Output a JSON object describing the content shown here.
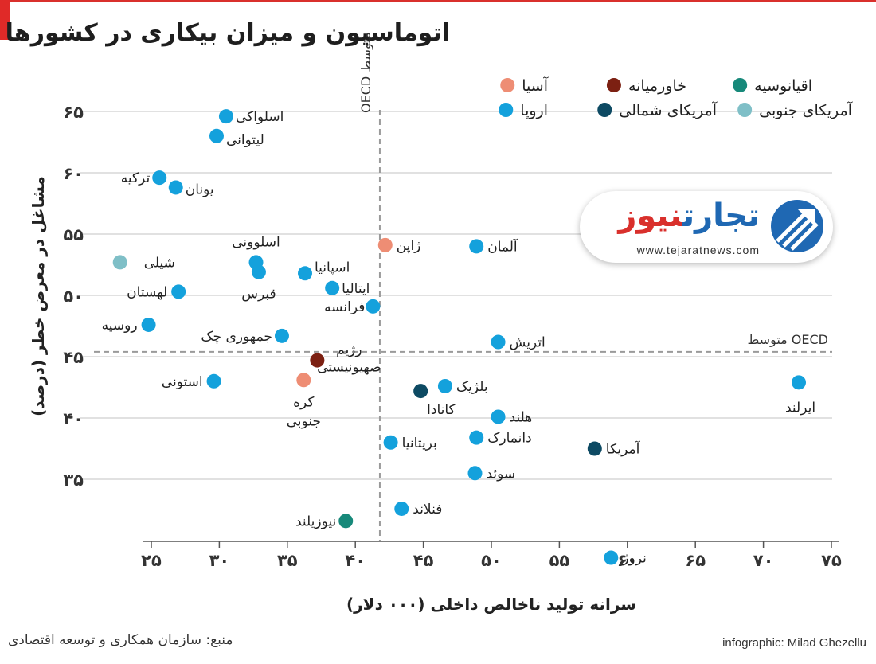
{
  "page_title": "اتوماسیون و میزان بیکاری در کشورها",
  "source": "منبع: سازمان همکاری و توسعه اقتصادی",
  "credit": "infographic: Milad Ghezellu",
  "logo": {
    "name_part1": "تجارت",
    "name_part2": "نیوز",
    "url": "www.tejaratnews.com"
  },
  "colors": {
    "asia": "#ee8d74",
    "middle_east": "#7c2012",
    "oceania": "#17897a",
    "europe": "#14a1dc",
    "north_america": "#0d4a63",
    "south_america": "#7fbfc7"
  },
  "chart_data": {
    "type": "scatter",
    "title": "اتوماسیون و میزان بیکاری در کشورها",
    "xlabel": "سرانه تولید ناخالص داخلی (۰۰۰ دلار)",
    "ylabel": "مشاغل در معرض خطر (درصد)",
    "xlim": [
      24,
      75
    ],
    "ylim": [
      30,
      67
    ],
    "xticks": [
      25,
      30,
      35,
      40,
      45,
      50,
      55,
      60,
      65,
      70,
      75
    ],
    "xtick_labels": [
      "۲۵",
      "۳۰",
      "۳۵",
      "۴۰",
      "۴۵",
      "۵۰",
      "۵۵",
      "۶۰",
      "۶۵",
      "۷۰",
      "۷۵"
    ],
    "yticks": [
      35,
      40,
      45,
      50,
      55,
      60,
      65
    ],
    "ytick_labels": [
      "۳۵",
      "۴۰",
      "۴۵",
      "۵۰",
      "۵۵",
      "۶۰",
      "۶۵"
    ],
    "grid": "horizontal",
    "reference_lines": [
      {
        "axis": "x",
        "value": 41.8,
        "label": "متوسط OECD"
      },
      {
        "axis": "y",
        "value": 45.4,
        "label": "متوسط OECD"
      }
    ],
    "legend": {
      "position": "top-right",
      "items": [
        {
          "key": "asia",
          "label": "آسیا"
        },
        {
          "key": "middle_east",
          "label": "خاورمیانه"
        },
        {
          "key": "oceania",
          "label": "اقیانوسیه"
        },
        {
          "key": "europe",
          "label": "اروپا"
        },
        {
          "key": "north_america",
          "label": "آمریکای شمالی"
        },
        {
          "key": "south_america",
          "label": "آمریکای جنوبی"
        }
      ]
    },
    "points": [
      {
        "name": "اسلواکی",
        "x": 30.5,
        "y": 64.6,
        "group": "europe"
      },
      {
        "name": "لیتوانی",
        "x": 29.8,
        "y": 63.0,
        "group": "europe"
      },
      {
        "name": "ترکیه",
        "x": 25.6,
        "y": 59.6,
        "group": "europe"
      },
      {
        "name": "یونان",
        "x": 26.8,
        "y": 58.8,
        "group": "europe"
      },
      {
        "name": "شیلی",
        "x": 22.7,
        "y": 52.7,
        "group": "south_america"
      },
      {
        "name": "اسلوونی",
        "x": 32.7,
        "y": 52.7,
        "group": "europe"
      },
      {
        "name": "قبرس",
        "x": 32.9,
        "y": 51.9,
        "group": "europe"
      },
      {
        "name": "اسپانیا",
        "x": 36.3,
        "y": 51.8,
        "group": "europe"
      },
      {
        "name": "ایتالیا",
        "x": 38.3,
        "y": 50.6,
        "group": "europe"
      },
      {
        "name": "لهستان",
        "x": 27.0,
        "y": 50.3,
        "group": "europe"
      },
      {
        "name": "فرانسه",
        "x": 41.3,
        "y": 49.1,
        "group": "europe"
      },
      {
        "name": "روسیه",
        "x": 24.8,
        "y": 47.6,
        "group": "europe"
      },
      {
        "name": "جمهوری چک",
        "x": 34.6,
        "y": 46.7,
        "group": "europe"
      },
      {
        "name": "ژاپن",
        "x": 42.2,
        "y": 54.1,
        "group": "asia"
      },
      {
        "name": "آلمان",
        "x": 48.9,
        "y": 54.0,
        "group": "europe"
      },
      {
        "name": "اتریش",
        "x": 50.5,
        "y": 46.2,
        "group": "europe"
      },
      {
        "name": "رژیم صهیونیستی",
        "x": 37.2,
        "y": 44.7,
        "group": "middle_east"
      },
      {
        "name": "کره جنوبی",
        "x": 36.2,
        "y": 43.1,
        "group": "asia"
      },
      {
        "name": "استونی",
        "x": 29.6,
        "y": 43.0,
        "group": "europe"
      },
      {
        "name": "بلژیک",
        "x": 46.6,
        "y": 42.6,
        "group": "europe"
      },
      {
        "name": "کانادا",
        "x": 44.8,
        "y": 42.2,
        "group": "north_america"
      },
      {
        "name": "ایرلند",
        "x": 72.6,
        "y": 42.9,
        "group": "europe"
      },
      {
        "name": "هلند",
        "x": 50.5,
        "y": 40.1,
        "group": "europe"
      },
      {
        "name": "دانمارک",
        "x": 48.9,
        "y": 38.4,
        "group": "europe"
      },
      {
        "name": "بریتانیا",
        "x": 42.6,
        "y": 38.0,
        "group": "europe"
      },
      {
        "name": "آمریکا",
        "x": 57.6,
        "y": 37.5,
        "group": "north_america"
      },
      {
        "name": "سوئد",
        "x": 48.8,
        "y": 35.5,
        "group": "europe"
      },
      {
        "name": "فنلاند",
        "x": 43.4,
        "y": 32.6,
        "group": "europe"
      },
      {
        "name": "نیوزیلند",
        "x": 39.3,
        "y": 31.6,
        "group": "oceania"
      },
      {
        "name": "نروژ",
        "x": 58.8,
        "y": 28.6,
        "group": "europe"
      }
    ]
  }
}
